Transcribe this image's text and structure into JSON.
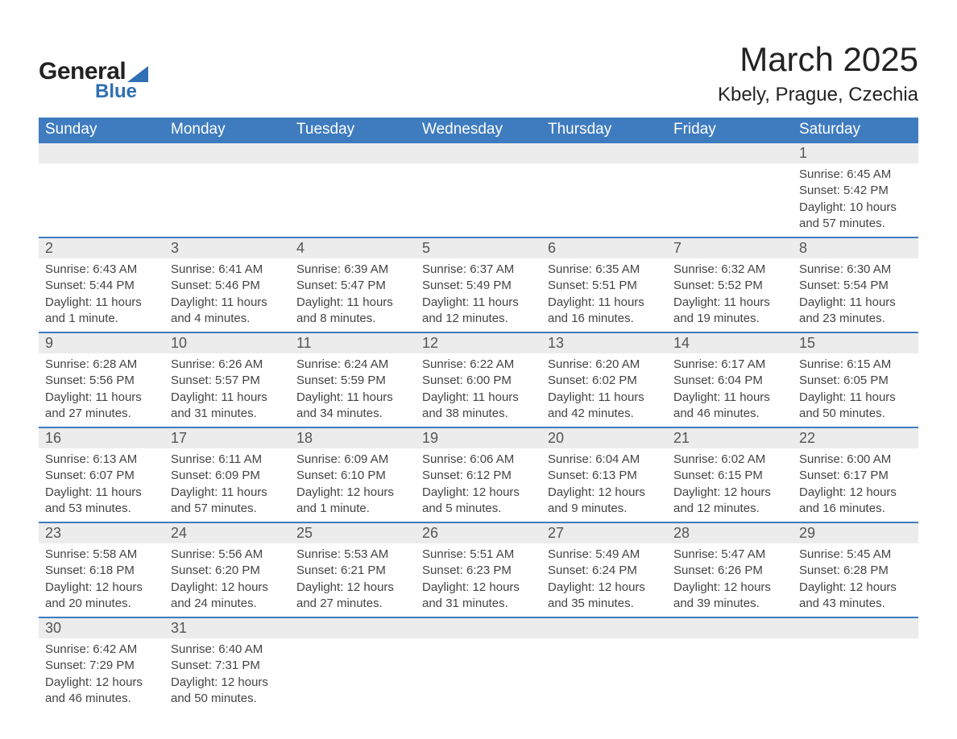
{
  "logo": {
    "text_top": "General",
    "text_bottom": "Blue"
  },
  "title": {
    "month": "March 2025",
    "location": "Kbely, Prague, Czechia"
  },
  "colors": {
    "header_bg": "#3f7cbf",
    "header_text": "#ffffff",
    "row_stripe": "#ececec",
    "row_border": "#3f7cbf",
    "logo_accent": "#2f6fb3"
  },
  "weekdays": [
    "Sunday",
    "Monday",
    "Tuesday",
    "Wednesday",
    "Thursday",
    "Friday",
    "Saturday"
  ],
  "weeks": [
    [
      null,
      null,
      null,
      null,
      null,
      null,
      {
        "day": "1",
        "sunrise": "Sunrise: 6:45 AM",
        "sunset": "Sunset: 5:42 PM",
        "daylight1": "Daylight: 10 hours",
        "daylight2": "and 57 minutes."
      }
    ],
    [
      {
        "day": "2",
        "sunrise": "Sunrise: 6:43 AM",
        "sunset": "Sunset: 5:44 PM",
        "daylight1": "Daylight: 11 hours",
        "daylight2": "and 1 minute."
      },
      {
        "day": "3",
        "sunrise": "Sunrise: 6:41 AM",
        "sunset": "Sunset: 5:46 PM",
        "daylight1": "Daylight: 11 hours",
        "daylight2": "and 4 minutes."
      },
      {
        "day": "4",
        "sunrise": "Sunrise: 6:39 AM",
        "sunset": "Sunset: 5:47 PM",
        "daylight1": "Daylight: 11 hours",
        "daylight2": "and 8 minutes."
      },
      {
        "day": "5",
        "sunrise": "Sunrise: 6:37 AM",
        "sunset": "Sunset: 5:49 PM",
        "daylight1": "Daylight: 11 hours",
        "daylight2": "and 12 minutes."
      },
      {
        "day": "6",
        "sunrise": "Sunrise: 6:35 AM",
        "sunset": "Sunset: 5:51 PM",
        "daylight1": "Daylight: 11 hours",
        "daylight2": "and 16 minutes."
      },
      {
        "day": "7",
        "sunrise": "Sunrise: 6:32 AM",
        "sunset": "Sunset: 5:52 PM",
        "daylight1": "Daylight: 11 hours",
        "daylight2": "and 19 minutes."
      },
      {
        "day": "8",
        "sunrise": "Sunrise: 6:30 AM",
        "sunset": "Sunset: 5:54 PM",
        "daylight1": "Daylight: 11 hours",
        "daylight2": "and 23 minutes."
      }
    ],
    [
      {
        "day": "9",
        "sunrise": "Sunrise: 6:28 AM",
        "sunset": "Sunset: 5:56 PM",
        "daylight1": "Daylight: 11 hours",
        "daylight2": "and 27 minutes."
      },
      {
        "day": "10",
        "sunrise": "Sunrise: 6:26 AM",
        "sunset": "Sunset: 5:57 PM",
        "daylight1": "Daylight: 11 hours",
        "daylight2": "and 31 minutes."
      },
      {
        "day": "11",
        "sunrise": "Sunrise: 6:24 AM",
        "sunset": "Sunset: 5:59 PM",
        "daylight1": "Daylight: 11 hours",
        "daylight2": "and 34 minutes."
      },
      {
        "day": "12",
        "sunrise": "Sunrise: 6:22 AM",
        "sunset": "Sunset: 6:00 PM",
        "daylight1": "Daylight: 11 hours",
        "daylight2": "and 38 minutes."
      },
      {
        "day": "13",
        "sunrise": "Sunrise: 6:20 AM",
        "sunset": "Sunset: 6:02 PM",
        "daylight1": "Daylight: 11 hours",
        "daylight2": "and 42 minutes."
      },
      {
        "day": "14",
        "sunrise": "Sunrise: 6:17 AM",
        "sunset": "Sunset: 6:04 PM",
        "daylight1": "Daylight: 11 hours",
        "daylight2": "and 46 minutes."
      },
      {
        "day": "15",
        "sunrise": "Sunrise: 6:15 AM",
        "sunset": "Sunset: 6:05 PM",
        "daylight1": "Daylight: 11 hours",
        "daylight2": "and 50 minutes."
      }
    ],
    [
      {
        "day": "16",
        "sunrise": "Sunrise: 6:13 AM",
        "sunset": "Sunset: 6:07 PM",
        "daylight1": "Daylight: 11 hours",
        "daylight2": "and 53 minutes."
      },
      {
        "day": "17",
        "sunrise": "Sunrise: 6:11 AM",
        "sunset": "Sunset: 6:09 PM",
        "daylight1": "Daylight: 11 hours",
        "daylight2": "and 57 minutes."
      },
      {
        "day": "18",
        "sunrise": "Sunrise: 6:09 AM",
        "sunset": "Sunset: 6:10 PM",
        "daylight1": "Daylight: 12 hours",
        "daylight2": "and 1 minute."
      },
      {
        "day": "19",
        "sunrise": "Sunrise: 6:06 AM",
        "sunset": "Sunset: 6:12 PM",
        "daylight1": "Daylight: 12 hours",
        "daylight2": "and 5 minutes."
      },
      {
        "day": "20",
        "sunrise": "Sunrise: 6:04 AM",
        "sunset": "Sunset: 6:13 PM",
        "daylight1": "Daylight: 12 hours",
        "daylight2": "and 9 minutes."
      },
      {
        "day": "21",
        "sunrise": "Sunrise: 6:02 AM",
        "sunset": "Sunset: 6:15 PM",
        "daylight1": "Daylight: 12 hours",
        "daylight2": "and 12 minutes."
      },
      {
        "day": "22",
        "sunrise": "Sunrise: 6:00 AM",
        "sunset": "Sunset: 6:17 PM",
        "daylight1": "Daylight: 12 hours",
        "daylight2": "and 16 minutes."
      }
    ],
    [
      {
        "day": "23",
        "sunrise": "Sunrise: 5:58 AM",
        "sunset": "Sunset: 6:18 PM",
        "daylight1": "Daylight: 12 hours",
        "daylight2": "and 20 minutes."
      },
      {
        "day": "24",
        "sunrise": "Sunrise: 5:56 AM",
        "sunset": "Sunset: 6:20 PM",
        "daylight1": "Daylight: 12 hours",
        "daylight2": "and 24 minutes."
      },
      {
        "day": "25",
        "sunrise": "Sunrise: 5:53 AM",
        "sunset": "Sunset: 6:21 PM",
        "daylight1": "Daylight: 12 hours",
        "daylight2": "and 27 minutes."
      },
      {
        "day": "26",
        "sunrise": "Sunrise: 5:51 AM",
        "sunset": "Sunset: 6:23 PM",
        "daylight1": "Daylight: 12 hours",
        "daylight2": "and 31 minutes."
      },
      {
        "day": "27",
        "sunrise": "Sunrise: 5:49 AM",
        "sunset": "Sunset: 6:24 PM",
        "daylight1": "Daylight: 12 hours",
        "daylight2": "and 35 minutes."
      },
      {
        "day": "28",
        "sunrise": "Sunrise: 5:47 AM",
        "sunset": "Sunset: 6:26 PM",
        "daylight1": "Daylight: 12 hours",
        "daylight2": "and 39 minutes."
      },
      {
        "day": "29",
        "sunrise": "Sunrise: 5:45 AM",
        "sunset": "Sunset: 6:28 PM",
        "daylight1": "Daylight: 12 hours",
        "daylight2": "and 43 minutes."
      }
    ],
    [
      {
        "day": "30",
        "sunrise": "Sunrise: 6:42 AM",
        "sunset": "Sunset: 7:29 PM",
        "daylight1": "Daylight: 12 hours",
        "daylight2": "and 46 minutes."
      },
      {
        "day": "31",
        "sunrise": "Sunrise: 6:40 AM",
        "sunset": "Sunset: 7:31 PM",
        "daylight1": "Daylight: 12 hours",
        "daylight2": "and 50 minutes."
      },
      null,
      null,
      null,
      null,
      null
    ]
  ]
}
